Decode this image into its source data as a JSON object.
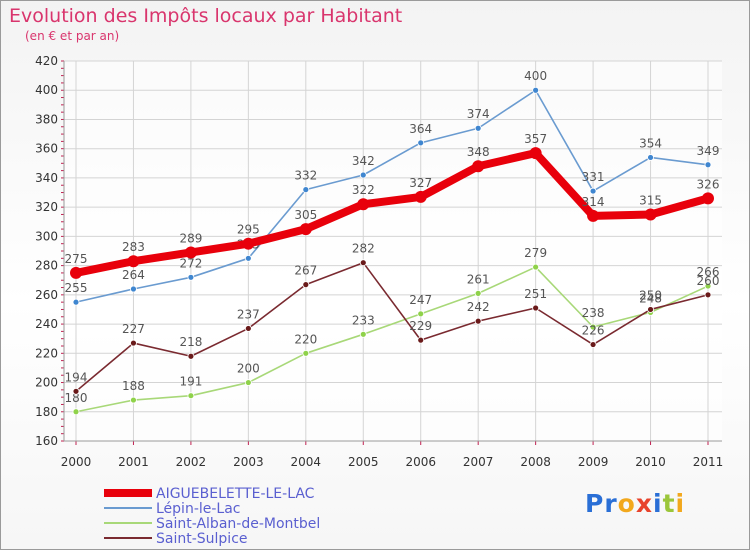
{
  "header": {
    "title": "Evolution des Impôts locaux par Habitant",
    "subtitle": "(en € et par an)"
  },
  "logo": {
    "text": "Proxiti",
    "letter_colors": [
      "#2a6fd6",
      "#2a6fd6",
      "#f2a81d",
      "#e8432c",
      "#2a6fd6",
      "#9bc63a",
      "#f2a81d"
    ]
  },
  "chart_data": {
    "type": "line",
    "title": "Evolution des Impôts locaux par Habitant",
    "subtitle": "(en € et par an)",
    "categories": [
      "2000",
      "2001",
      "2002",
      "2003",
      "2004",
      "2005",
      "2006",
      "2007",
      "2008",
      "2009",
      "2010",
      "2011"
    ],
    "y_ticks": [
      160,
      180,
      200,
      220,
      240,
      260,
      280,
      300,
      320,
      340,
      360,
      380,
      400,
      420
    ],
    "ylim": [
      160,
      420
    ],
    "grid": true,
    "legend_position": "bottom-left",
    "series": [
      {
        "name": "AIGUEBELETTE-LE-LAC",
        "color": "#e8000b",
        "bold": true,
        "values": [
          275,
          283,
          289,
          295,
          305,
          322,
          327,
          348,
          357,
          314,
          315,
          326
        ]
      },
      {
        "name": "Lépin-le-Lac",
        "color": "#6a9bd0",
        "marker_fill": "#3f86d0",
        "bold": false,
        "values": [
          255,
          264,
          272,
          285,
          332,
          342,
          364,
          374,
          400,
          331,
          354,
          349
        ]
      },
      {
        "name": "Saint-Alban-de-Montbel",
        "color": "#a8d878",
        "marker_fill": "#8fd24a",
        "bold": false,
        "values": [
          180,
          188,
          191,
          200,
          220,
          233,
          247,
          261,
          279,
          238,
          248,
          266
        ]
      },
      {
        "name": "Saint-Sulpice",
        "color": "#7a2a30",
        "marker_fill": "#6a1a1a",
        "bold": false,
        "values": [
          194,
          227,
          218,
          237,
          267,
          282,
          229,
          242,
          251,
          226,
          250,
          260
        ]
      }
    ]
  }
}
